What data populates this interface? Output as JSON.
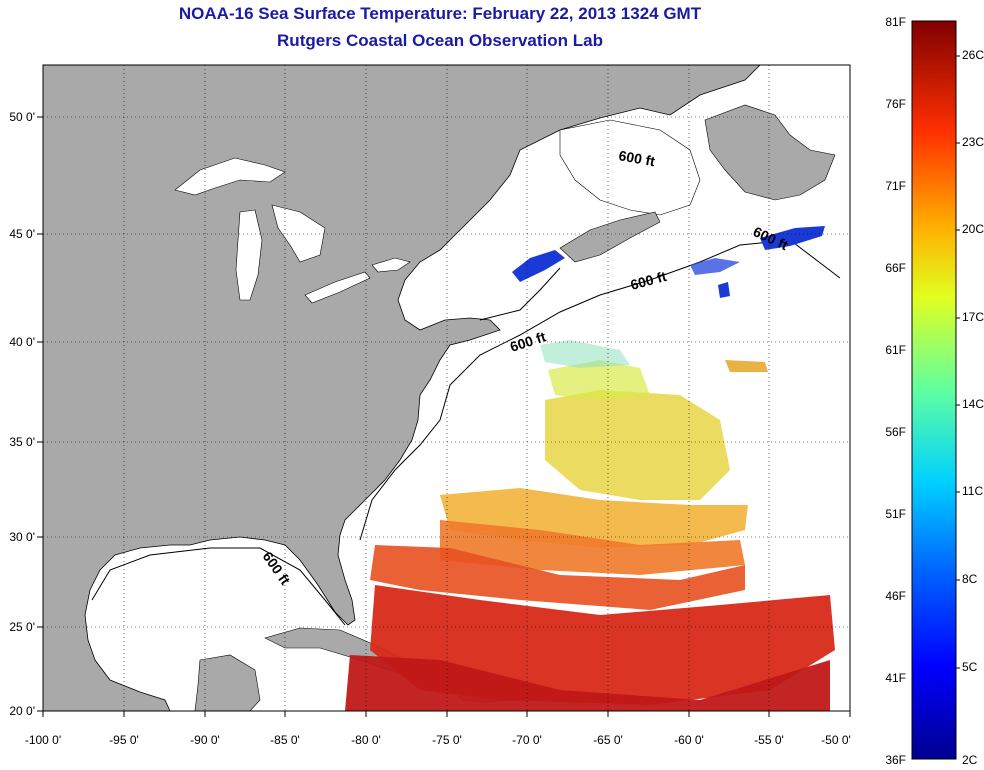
{
  "title": "NOAA-16 Sea Surface Temperature:  February 22, 2013 1324 GMT",
  "subtitle": "Rutgers Coastal Ocean Observation Lab",
  "map": {
    "lon_range": [
      -100,
      -50
    ],
    "lat_range": [
      20,
      52.5
    ],
    "lon_ticks": [
      "-100 0'",
      "-95 0'",
      "-90 0'",
      "-85 0'",
      "-80 0'",
      "-75 0'",
      "-70 0'",
      "-65 0'",
      "-60 0'",
      "-55 0'",
      "-50 0'"
    ],
    "lat_ticks": [
      "20 0'",
      "25 0'",
      "30 0'",
      "35 0'",
      "40 0'",
      "45 0'",
      "50 0'"
    ],
    "contour_labels": [
      "600 ft",
      "600 ft",
      "600 ft",
      "600 ft",
      "600 ft"
    ],
    "land_color": "#a9a9a9",
    "grid": "dotted"
  },
  "colorbar": {
    "fahrenheit": [
      "81F",
      "76F",
      "71F",
      "66F",
      "61F",
      "56F",
      "51F",
      "46F",
      "41F",
      "36F"
    ],
    "celsius": [
      "26C",
      "23C",
      "20C",
      "17C",
      "14C",
      "11C",
      "8C",
      "5C",
      "2C"
    ],
    "colors": [
      "#800000",
      "#ff0000",
      "#ff8000",
      "#ffff00",
      "#80ff80",
      "#00ffff",
      "#0080ff",
      "#0000ff",
      "#00008f"
    ]
  }
}
